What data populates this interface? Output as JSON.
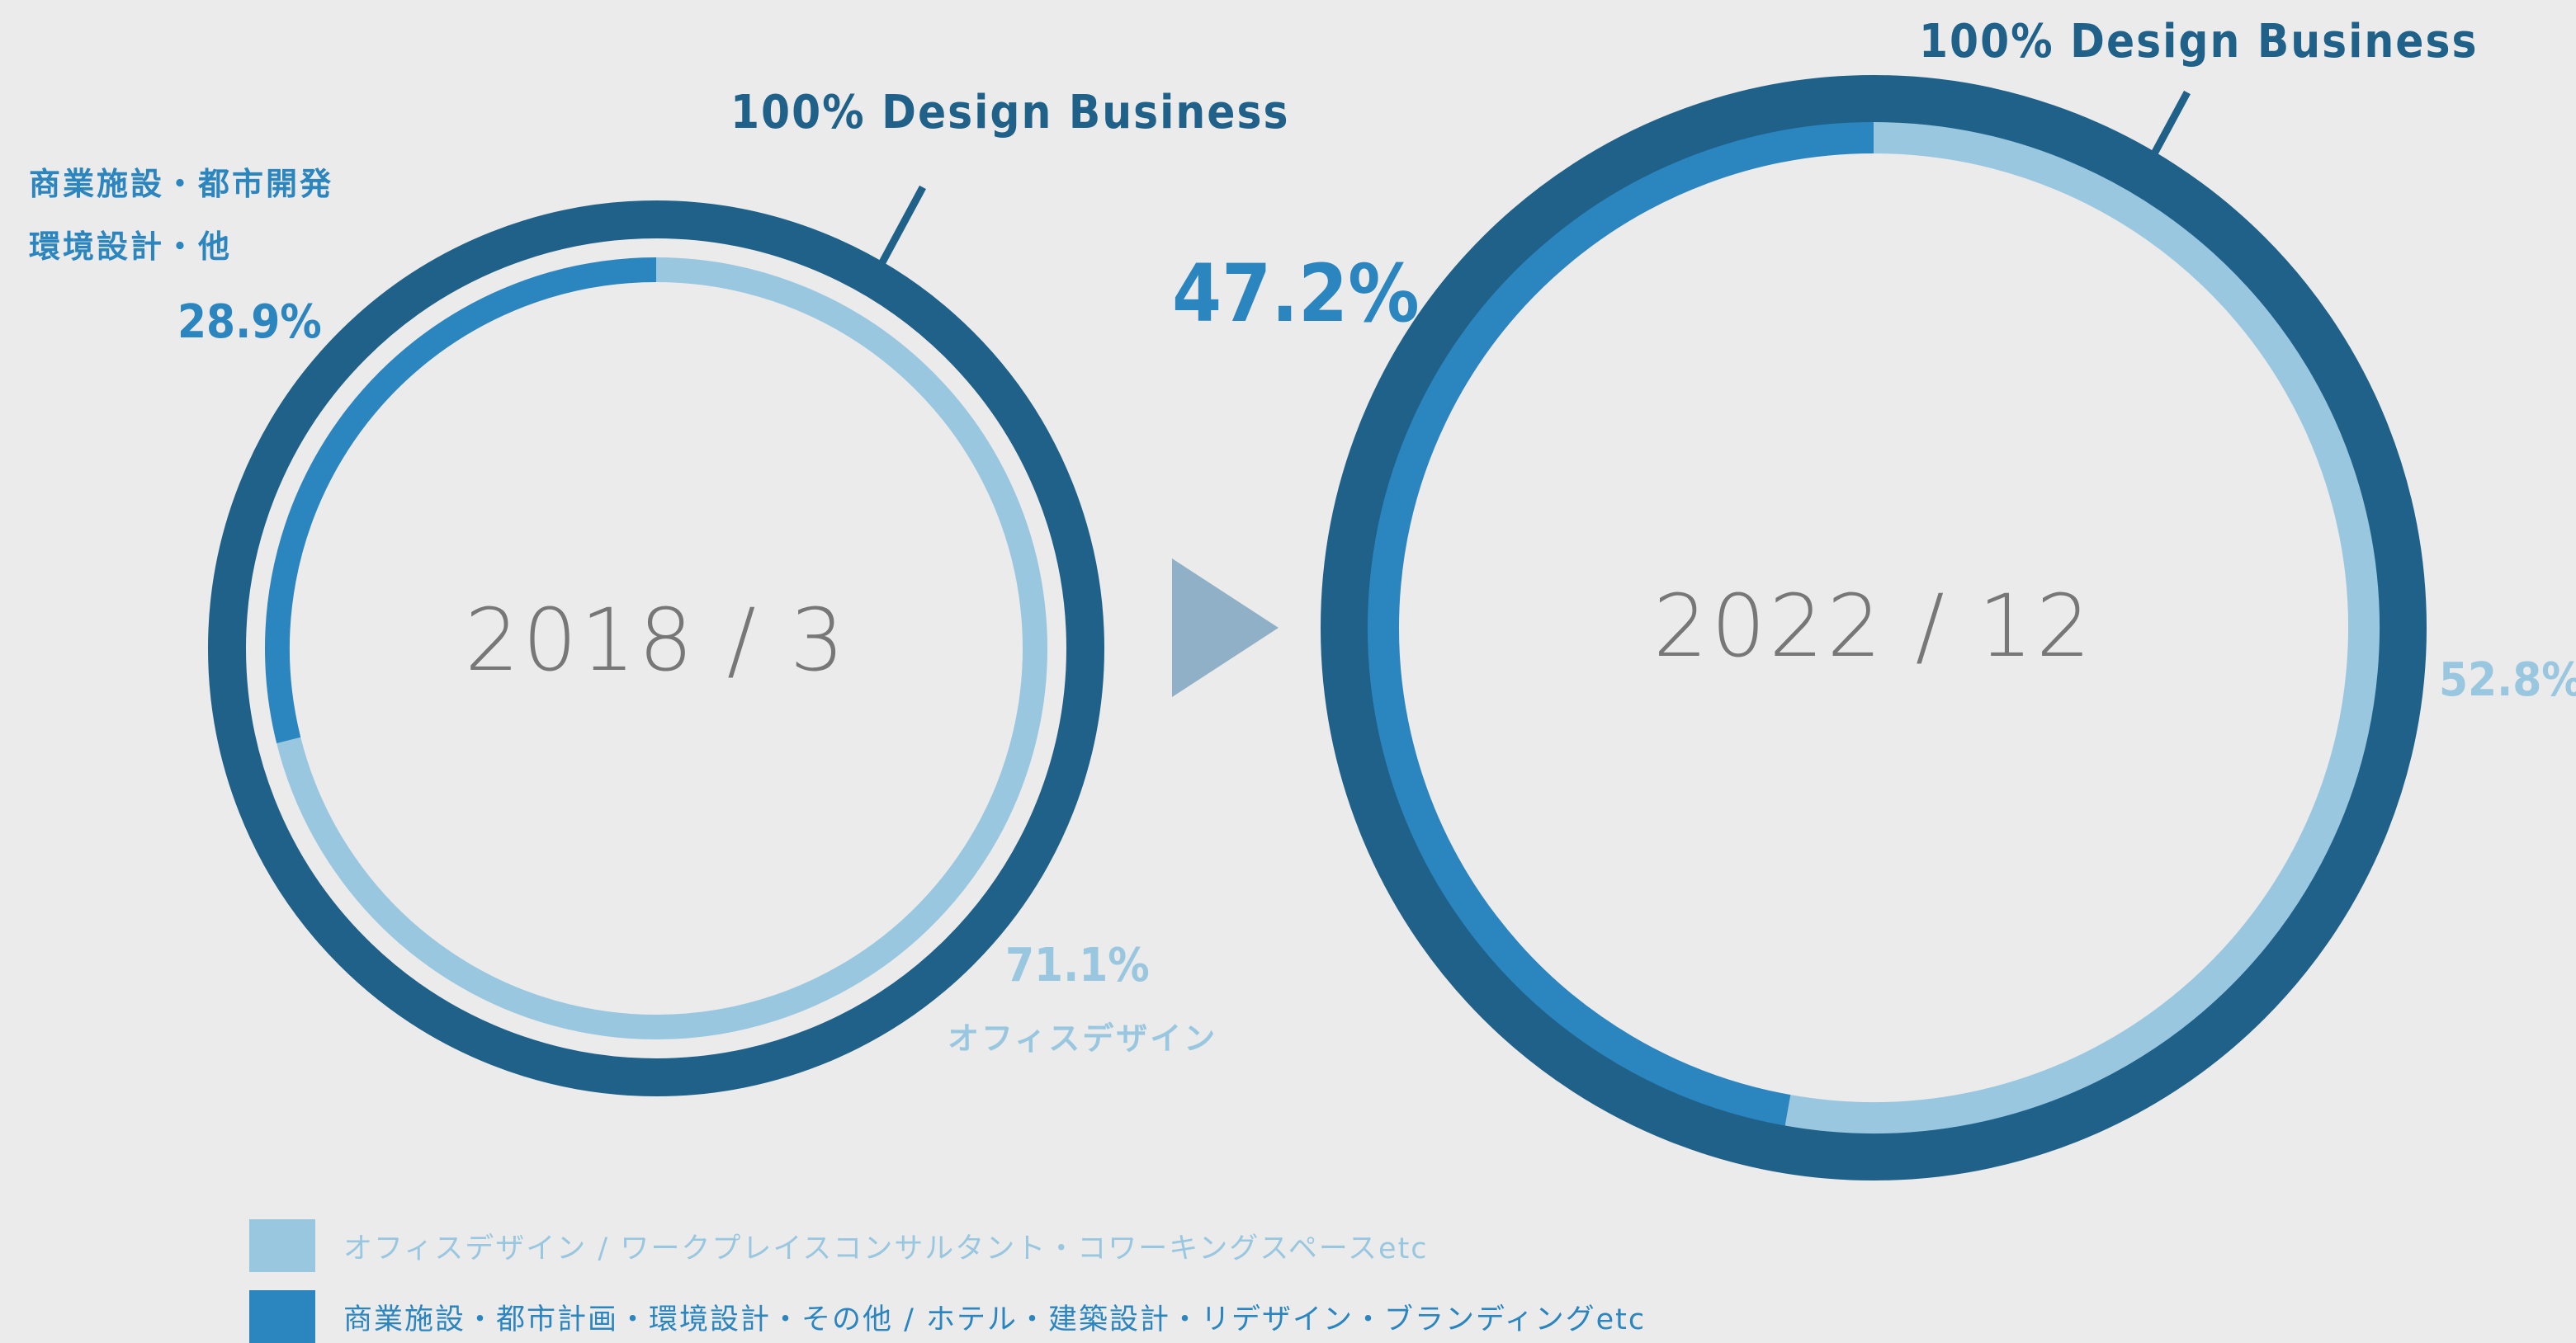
{
  "colors": {
    "background": "#ebebeb",
    "outer_ring": "#1f6189",
    "office": "#99c7e0",
    "commercial": "#2b85bf",
    "arrow": "#8fb0c6",
    "year_text": "#777777",
    "gap": "#ebebeb"
  },
  "labels": {
    "left_brand": "100% Design Business",
    "left_cat_line1": "商業施設・都市開発",
    "left_cat_line2": "環境設計・他",
    "left_commercial_pct": "28.9%",
    "left_office_pct": "71.1%",
    "left_office_name": "オフィスデザイン",
    "right_brand": "100% Design Business",
    "right_commercial_pct": "47.2%",
    "right_office_pct": "52.8%"
  },
  "legend": [
    {
      "label": "オフィスデザイン / ワークプレイスコンサルタント・コワーキングスペースetc",
      "color": "#99c7e0"
    },
    {
      "label": "商業施設・都市計画・環境設計・その他 / ホテル・建築設計・リデザイン・ブランディングetc",
      "color": "#2b85bf"
    }
  ],
  "chart_data": [
    {
      "type": "pie",
      "center_label": "2018 / 3",
      "total_label": "100% Design Business",
      "series": [
        {
          "name": "オフィスデザイン",
          "value": 71.1
        },
        {
          "name": "商業施設・都市開発 環境設計・他",
          "value": 28.9
        }
      ]
    },
    {
      "type": "pie",
      "center_label": "2022 / 12",
      "total_label": "100% Design Business",
      "series": [
        {
          "name": "オフィスデザイン",
          "value": 52.8
        },
        {
          "name": "商業施設・都市開発 環境設計・他",
          "value": 47.2
        }
      ]
    }
  ]
}
